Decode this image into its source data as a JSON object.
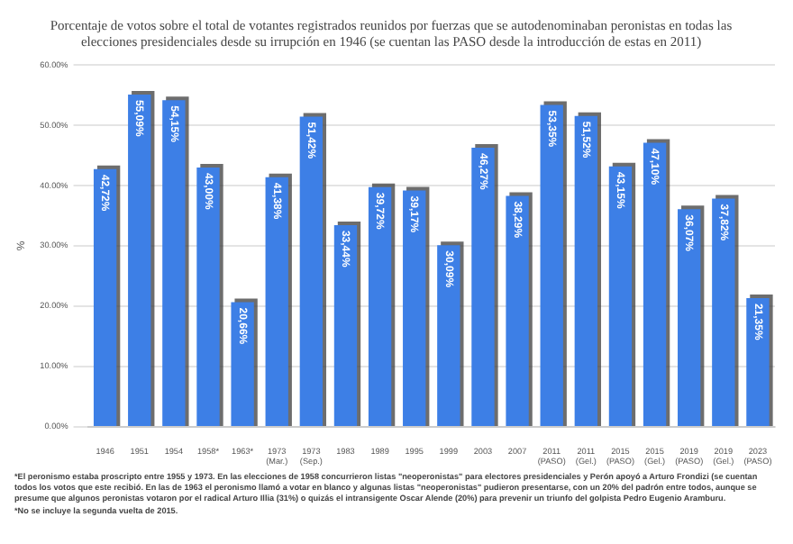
{
  "chart_data": {
    "type": "bar",
    "title": "Porcentaje de votos sobre el total de votantes registrados reunidos por fuerzas que se autodenominaban peronistas en todas las elecciones presidenciales desde su irrupción en 1946 (se cuentan las PASO desde la introducción de estas en 2011)",
    "ylabel": "%",
    "categories": [
      "1946",
      "1951",
      "1954",
      "1958*",
      "1963*",
      "1973 (Mar.)",
      "1973 (Sep.)",
      "1983",
      "1989",
      "1995",
      "1999",
      "2003",
      "2007",
      "2011 (PASO)",
      "2011 (Gel.)",
      "2015 (PASO)",
      "2015 (Gel.)",
      "2019 (PASO)",
      "2019 (Gel.)",
      "2023 (PASO)"
    ],
    "values": [
      42.72,
      55.09,
      54.15,
      43.0,
      20.66,
      41.38,
      51.42,
      33.44,
      39.72,
      39.17,
      30.09,
      46.27,
      38.29,
      53.35,
      51.52,
      43.15,
      47.1,
      36.07,
      37.82,
      21.35
    ],
    "value_labels": [
      "42,72%",
      "55,09%",
      "54,15%",
      "43,00%",
      "20,66%",
      "41,38%",
      "51,42%",
      "33,44%",
      "39,72%",
      "39,17%",
      "30,09%",
      "46,27%",
      "38,29%",
      "53,35%",
      "51,52%",
      "43,15%",
      "47,10%",
      "36,07%",
      "37,82%",
      "21,35%"
    ],
    "color": "#3d7fe6",
    "ylim": [
      0,
      60
    ],
    "yticks": [
      {
        "value": 0,
        "label": "0.00%"
      },
      {
        "value": 10,
        "label": "10.00%"
      },
      {
        "value": 20,
        "label": "20.00%"
      },
      {
        "value": 30,
        "label": "30.00%"
      },
      {
        "value": 40,
        "label": "40.00%"
      },
      {
        "value": 50,
        "label": "50.00%"
      },
      {
        "value": 60,
        "label": "60.00%"
      }
    ],
    "grid": "y",
    "legend": false,
    "annotations": [
      "*El peronismo estaba proscripto entre 1955 y 1973. En las elecciones de 1958 concurrieron listas \"neoperonistas\" para electores presidenciales y Perón apoyó a Arturo Frondizi (se cuentan todos los votos que este recibió. En las de 1963 el peronismo llamó a votar en blanco y algunas listas \"neoperonistas\" pudieron presentarse, con un 20% del padrón entre todos, aunque se presume que algunos peronistas votaron por el radical Arturo Illia (31%) o quizás el intransigente Oscar Alende (20%) para prevenir un triunfo del golpista Pedro Eugenio Aramburu.",
      "*No se incluye la segunda vuelta de 2015."
    ]
  }
}
